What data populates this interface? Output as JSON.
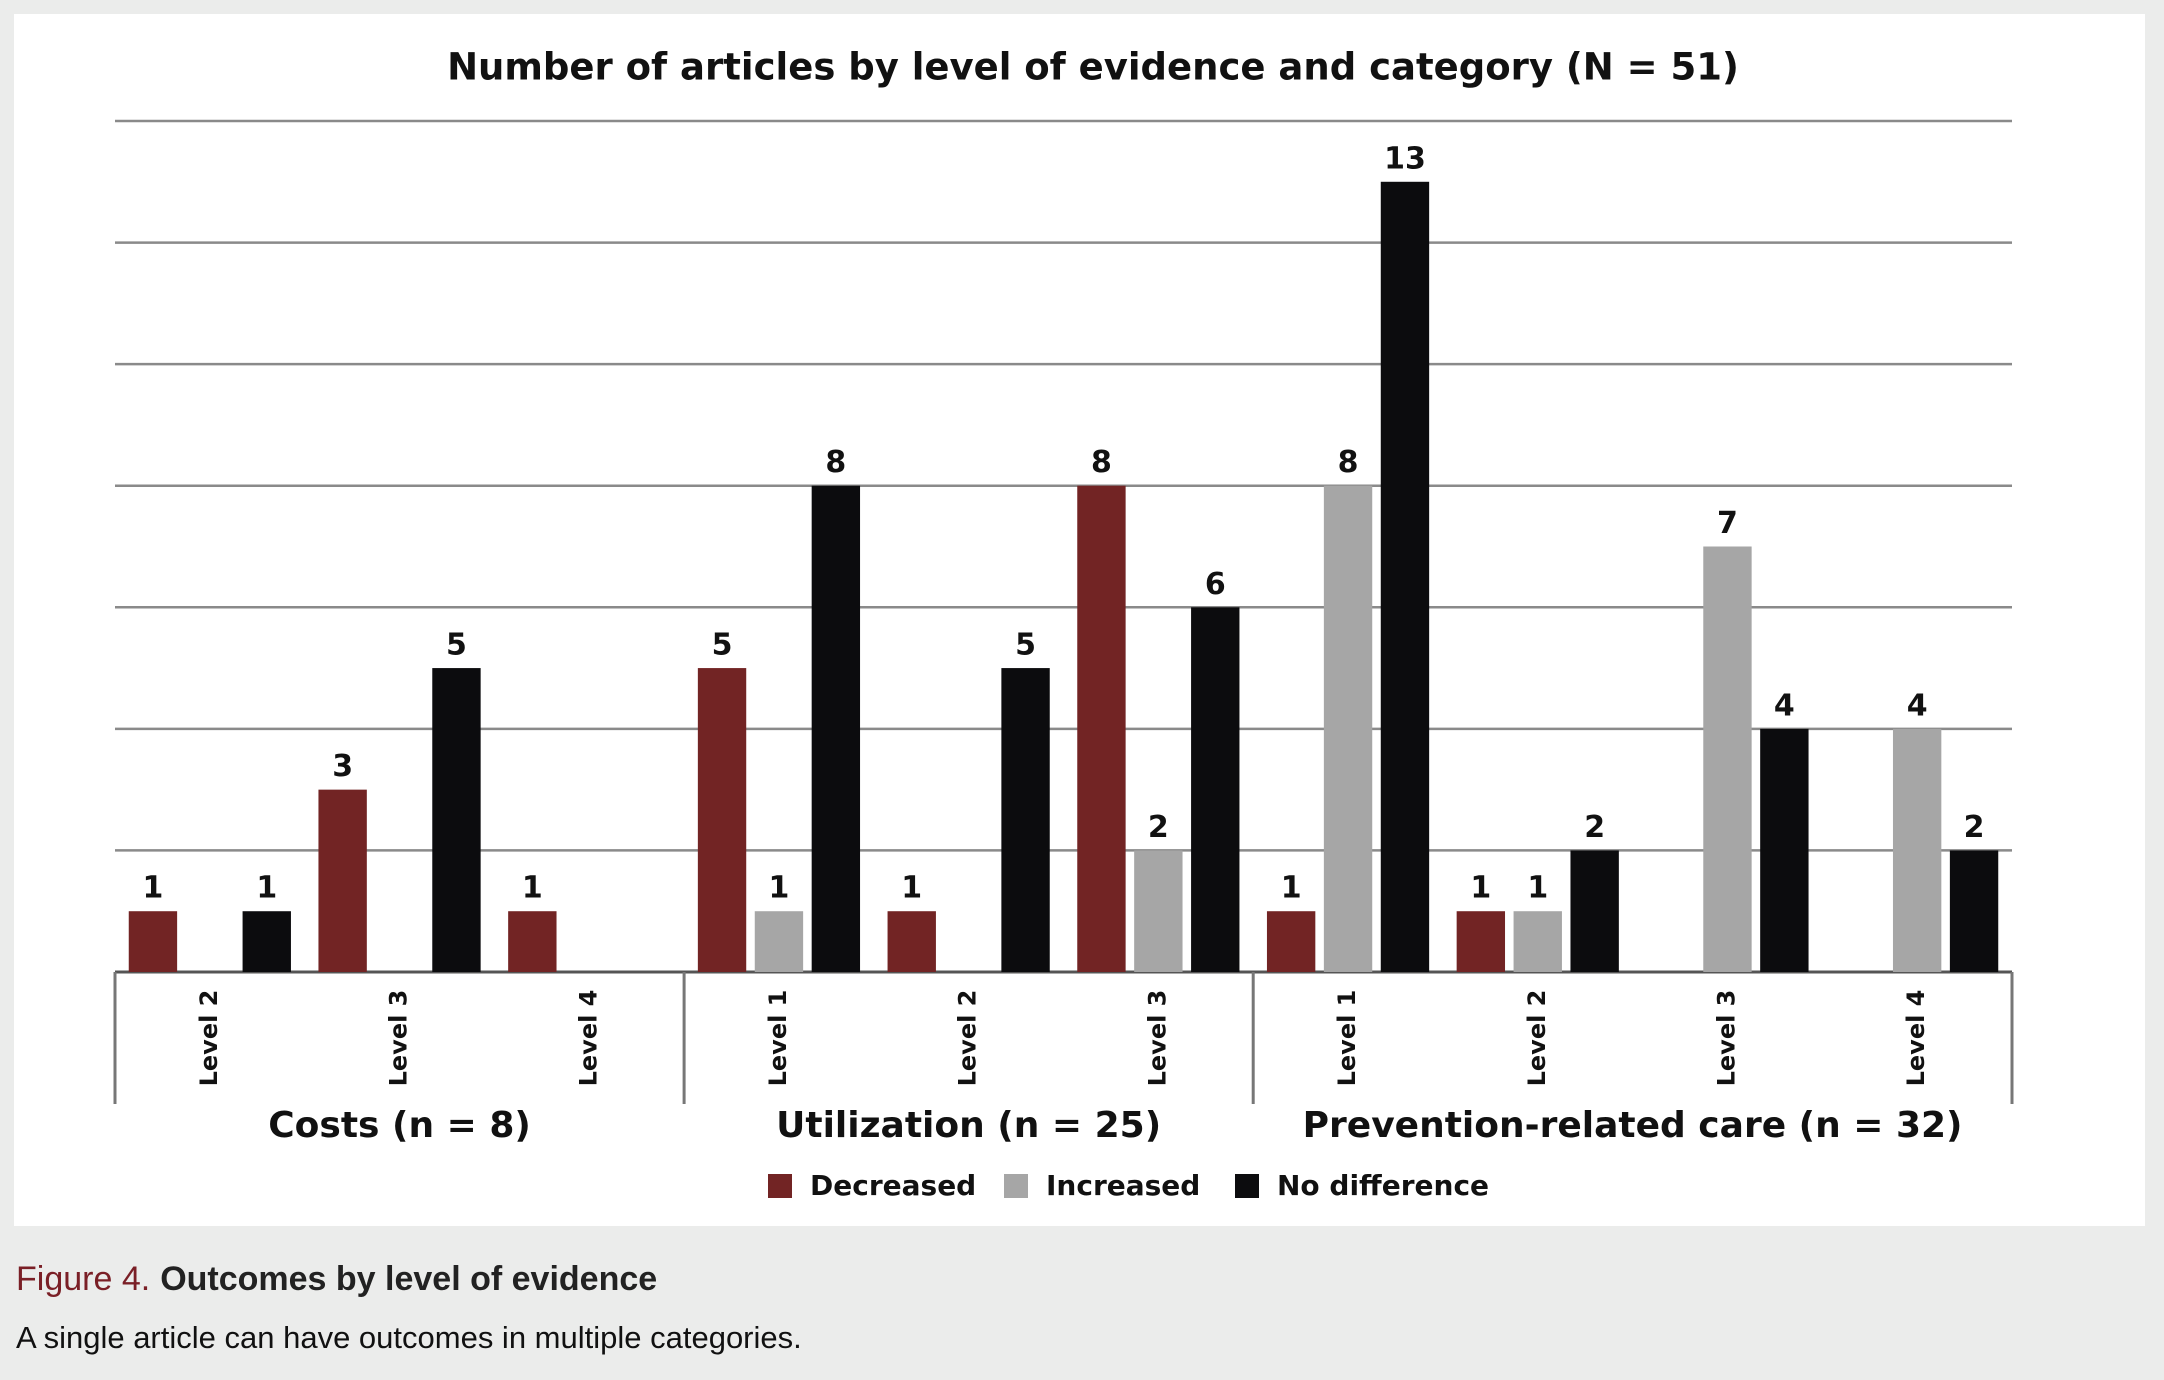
{
  "chart_data": {
    "type": "bar",
    "title": "Number of articles by level of evidence and category (N = 51)",
    "groups": [
      {
        "name": "Costs (n = 8)",
        "categories": [
          "Level 2",
          "Level 3",
          "Level 4"
        ]
      },
      {
        "name": "Utilization (n = 25)",
        "categories": [
          "Level 1",
          "Level 2",
          "Level 3"
        ]
      },
      {
        "name": "Prevention-related care (n = 32)",
        "categories": [
          "Level 1",
          "Level 2",
          "Level 3",
          "Level 4"
        ]
      }
    ],
    "series": [
      {
        "name": "Decreased",
        "color": "#722424",
        "values": [
          1,
          3,
          1,
          5,
          1,
          8,
          1,
          1,
          null,
          null
        ]
      },
      {
        "name": "Increased",
        "color": "#a6a6a6",
        "values": [
          null,
          null,
          null,
          1,
          null,
          2,
          8,
          1,
          7,
          4
        ]
      },
      {
        "name": "No difference",
        "color": "#0c0c0e",
        "values": [
          1,
          5,
          null,
          8,
          5,
          6,
          13,
          2,
          4,
          2
        ]
      }
    ],
    "ylim": [
      0,
      14
    ],
    "yticks": [
      0,
      2,
      4,
      6,
      8,
      10,
      12,
      14
    ],
    "grid": true,
    "legend": "bottom"
  },
  "figure": {
    "label": "Figure 4.",
    "title": "Outcomes by level of evidence",
    "note": "A single article can have outcomes in multiple categories."
  }
}
